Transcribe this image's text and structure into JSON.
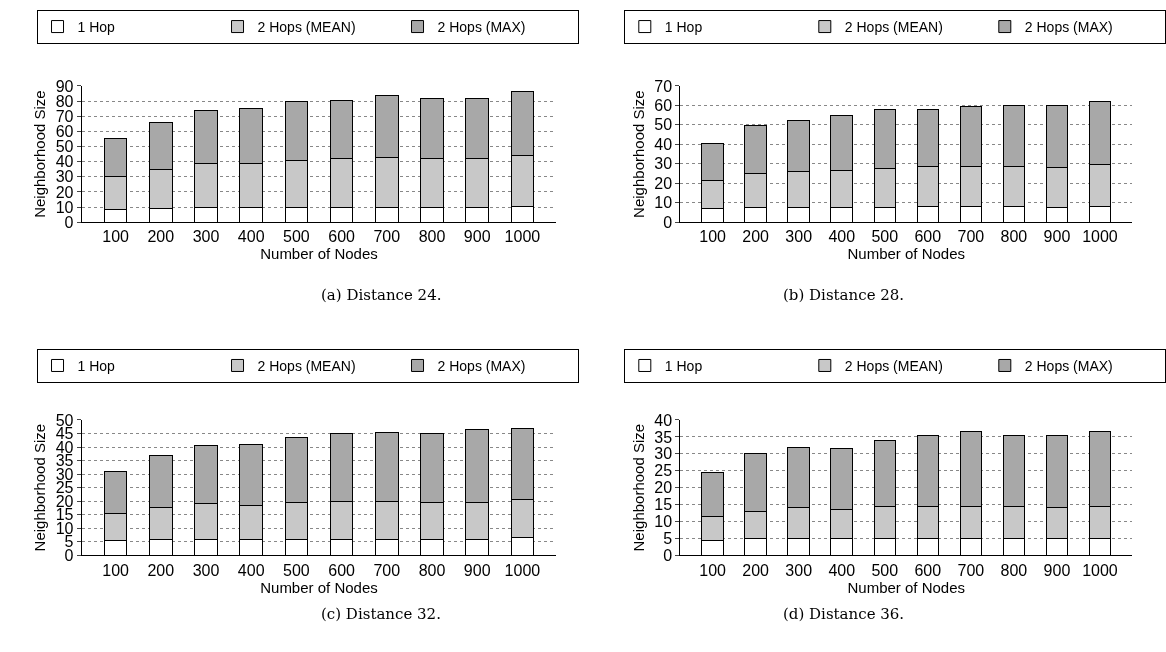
{
  "chart_data": [
    {
      "type": "bar",
      "stacked": true,
      "categories": [
        "100",
        "200",
        "300",
        "400",
        "500",
        "600",
        "700",
        "800",
        "900",
        "1000"
      ],
      "xlabel": "Number of Nodes",
      "ylabel": "Neighborhood Size",
      "ylim": [
        0,
        90
      ],
      "yticks": [
        0,
        10,
        20,
        30,
        40,
        50,
        60,
        70,
        80,
        90
      ],
      "grid": "y",
      "legend": "top",
      "annotations": [
        "(a) Distance 24."
      ],
      "series": [
        {
          "name": "1 Hop",
          "color": "#ffffff",
          "values": [
            8.5,
            9,
            9.5,
            9.5,
            10,
            10,
            10,
            10,
            10,
            10.5
          ]
        },
        {
          "name": "2 Hops (MEAN)",
          "color": "#c8c8c8",
          "values": [
            21.5,
            26,
            29.5,
            29.5,
            31,
            32,
            33,
            32,
            32,
            33.5
          ]
        },
        {
          "name": "2 Hops (MAX)",
          "color": "#a8a8a8",
          "values": [
            25,
            31,
            35,
            36,
            39,
            38.5,
            41,
            40,
            40,
            42
          ]
        }
      ]
    },
    {
      "type": "bar",
      "stacked": true,
      "categories": [
        "100",
        "200",
        "300",
        "400",
        "500",
        "600",
        "700",
        "800",
        "900",
        "1000"
      ],
      "xlabel": "Number of Nodes",
      "ylabel": "Neighborhood Size",
      "ylim": [
        0,
        70
      ],
      "yticks": [
        0,
        10,
        20,
        30,
        40,
        50,
        60,
        70
      ],
      "grid": "y",
      "legend": "top",
      "annotations": [
        "(b) Distance 28."
      ],
      "series": [
        {
          "name": "1 Hop",
          "color": "#ffffff",
          "values": [
            7,
            7.5,
            7.5,
            7.5,
            7.5,
            8,
            8,
            8,
            7.5,
            8
          ]
        },
        {
          "name": "2 Hops (MEAN)",
          "color": "#c8c8c8",
          "values": [
            14.5,
            17.5,
            18.5,
            19,
            20,
            20.5,
            20.5,
            20.5,
            20.5,
            21.5
          ]
        },
        {
          "name": "2 Hops (MAX)",
          "color": "#a8a8a8",
          "values": [
            19,
            24.5,
            26.5,
            28.5,
            30.5,
            29.5,
            31,
            31.5,
            32,
            32.5
          ]
        }
      ]
    },
    {
      "type": "bar",
      "stacked": true,
      "categories": [
        "100",
        "200",
        "300",
        "400",
        "500",
        "600",
        "700",
        "800",
        "900",
        "1000"
      ],
      "xlabel": "Number of Nodes",
      "ylabel": "Neighborhood Size",
      "ylim": [
        0,
        50
      ],
      "yticks": [
        0,
        5,
        10,
        15,
        20,
        25,
        30,
        35,
        40,
        45,
        50
      ],
      "grid": "y",
      "legend": "top",
      "annotations": [
        "(c) Distance 32."
      ],
      "series": [
        {
          "name": "1 Hop",
          "color": "#ffffff",
          "values": [
            5.5,
            6,
            6,
            6,
            6,
            6,
            6,
            6,
            6,
            6.5
          ]
        },
        {
          "name": "2 Hops (MEAN)",
          "color": "#c8c8c8",
          "values": [
            10,
            11.5,
            13,
            12.5,
            13.5,
            14,
            14,
            13.5,
            13.5,
            14
          ]
        },
        {
          "name": "2 Hops (MAX)",
          "color": "#a8a8a8",
          "values": [
            15.5,
            19.5,
            21.5,
            22.5,
            24,
            25,
            25.5,
            25.5,
            27,
            26.5
          ]
        }
      ]
    },
    {
      "type": "bar",
      "stacked": true,
      "categories": [
        "100",
        "200",
        "300",
        "400",
        "500",
        "600",
        "700",
        "800",
        "900",
        "1000"
      ],
      "xlabel": "Number of Nodes",
      "ylabel": "Neighborhood Size",
      "ylim": [
        0,
        40
      ],
      "yticks": [
        0,
        5,
        10,
        15,
        20,
        25,
        30,
        35,
        40
      ],
      "grid": "y",
      "legend": "top",
      "annotations": [
        "(d) Distance 36."
      ],
      "series": [
        {
          "name": "1 Hop",
          "color": "#ffffff",
          "values": [
            4.5,
            5,
            5,
            5,
            5,
            5,
            5,
            5,
            5,
            5
          ]
        },
        {
          "name": "2 Hops (MEAN)",
          "color": "#c8c8c8",
          "values": [
            7,
            8,
            9,
            8.5,
            9.5,
            9.5,
            9.5,
            9.5,
            9,
            9.5
          ]
        },
        {
          "name": "2 Hops (MAX)",
          "color": "#a8a8a8",
          "values": [
            13,
            17,
            18,
            18,
            19.5,
            21,
            22,
            21,
            21.5,
            22
          ]
        }
      ]
    }
  ]
}
